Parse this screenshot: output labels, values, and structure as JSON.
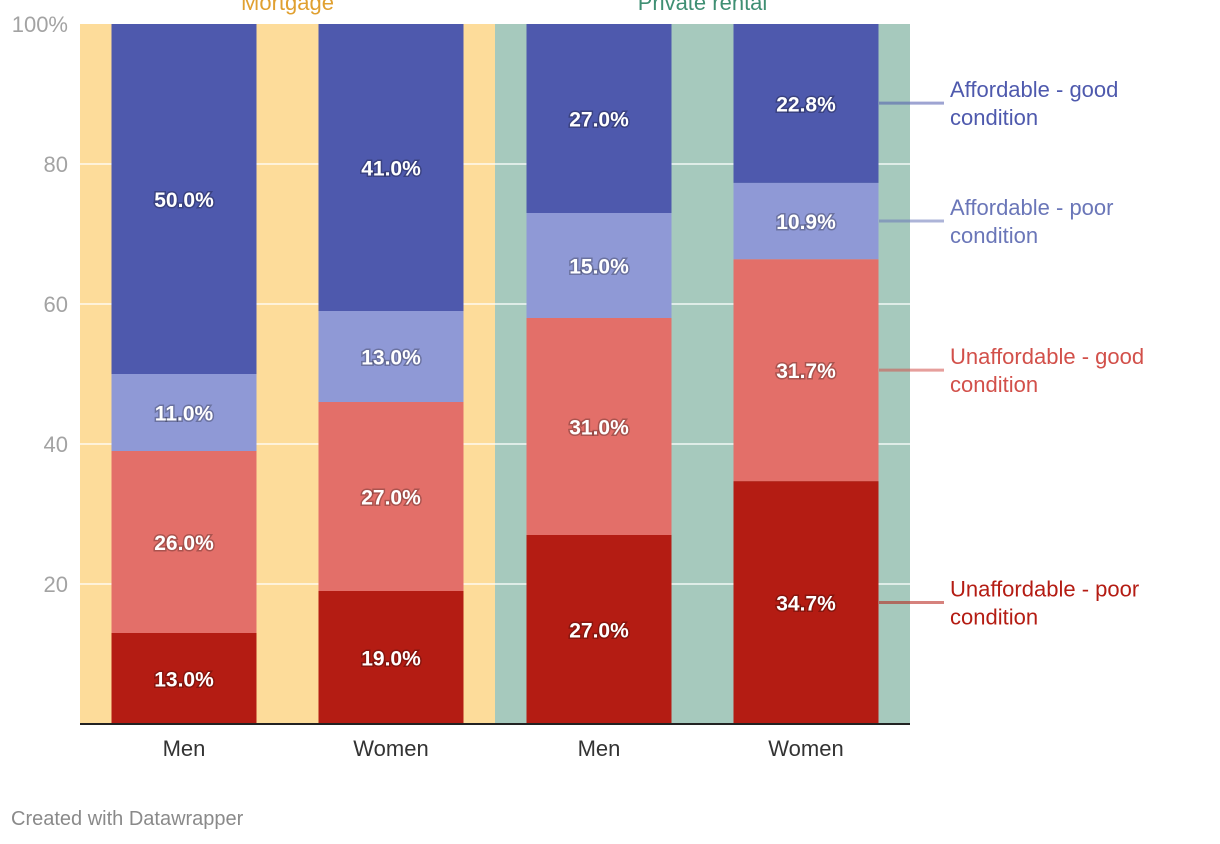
{
  "chart_data": {
    "type": "bar",
    "stacked": true,
    "categories": [
      "Men",
      "Women",
      "Men",
      "Women"
    ],
    "groups": [
      {
        "label": "Mortgage",
        "color": "#fddc9a",
        "label_color": "#e0a030",
        "categories": [
          0,
          1
        ]
      },
      {
        "label": "Private rental",
        "color": "#a6c9bd",
        "label_color": "#3f8f73",
        "categories": [
          2,
          3
        ]
      }
    ],
    "series": [
      {
        "name": "Unaffordable - poor condition",
        "color": "#b41c13",
        "label_color": "#b41c13",
        "values": [
          13.0,
          19.0,
          27.0,
          34.7
        ],
        "labels": [
          "13.0%",
          "19.0%",
          "27.0%",
          "34.7%"
        ]
      },
      {
        "name": "Unaffordable - good condition",
        "color": "#e36f69",
        "label_color": "#d2504a",
        "values": [
          26.0,
          27.0,
          31.0,
          31.7
        ],
        "labels": [
          "26.0%",
          "27.0%",
          "31.0%",
          "31.7%"
        ]
      },
      {
        "name": "Affordable - poor condition",
        "color": "#8f99d6",
        "label_color": "#6a76b8",
        "values": [
          11.0,
          13.0,
          15.0,
          10.9
        ],
        "labels": [
          "11.0%",
          "13.0%",
          "15.0%",
          "10.9%"
        ]
      },
      {
        "name": "Affordable - good condition",
        "color": "#4e59ad",
        "label_color": "#4e59ad",
        "values": [
          50.0,
          41.0,
          27.0,
          22.8
        ],
        "labels": [
          "50.0%",
          "41.0%",
          "27.0%",
          "22.8%"
        ]
      }
    ],
    "yticks": [
      {
        "value": 20,
        "label": "20"
      },
      {
        "value": 40,
        "label": "40"
      },
      {
        "value": 60,
        "label": "60"
      },
      {
        "value": 80,
        "label": "80"
      },
      {
        "value": 100,
        "label": "100%"
      }
    ],
    "ylim": [
      0,
      100
    ],
    "grid": true,
    "legend": "right"
  },
  "footer": "Created with Datawrapper"
}
